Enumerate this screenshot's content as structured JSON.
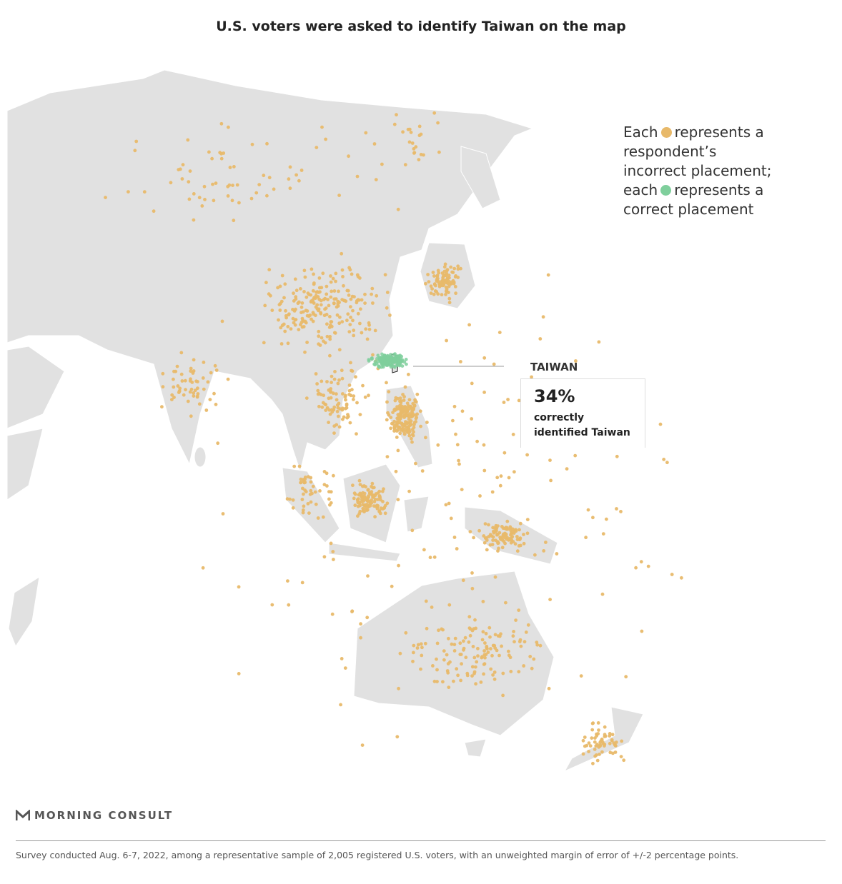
{
  "title": "U.S. voters were asked to identify Taiwan on the map",
  "legend": {
    "part1": "Each",
    "part2": "represents a respondent’s incorrect placement; each",
    "part3": "represents a correct placement"
  },
  "callout": {
    "label": "TAIWAN",
    "value": "34%",
    "text": "correctly identified Taiwan"
  },
  "logo": "MORNING CONSULT",
  "footnote": "Survey conducted Aug. 6-7, 2022, among a representative sample of 2,005 registered U.S. voters, with an unweighted margin of error of +/-2 percentage points."
}
